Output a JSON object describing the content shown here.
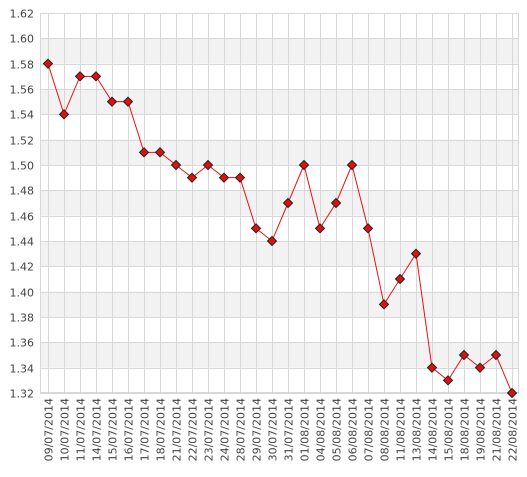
{
  "chart_data": {
    "type": "line",
    "title": "",
    "xlabel": "",
    "ylabel": "",
    "ylim": [
      1.32,
      1.62
    ],
    "yticks": [
      "1.32",
      "1.34",
      "1.36",
      "1.38",
      "1.40",
      "1.42",
      "1.44",
      "1.46",
      "1.48",
      "1.50",
      "1.52",
      "1.54",
      "1.56",
      "1.58",
      "1.60",
      "1.62"
    ],
    "categories": [
      "09/07/2014",
      "10/07/2014",
      "11/07/2014",
      "14/07/2014",
      "15/07/2014",
      "16/07/2014",
      "17/07/2014",
      "18/07/2014",
      "21/07/2014",
      "22/07/2014",
      "23/07/2014",
      "24/07/2014",
      "28/07/2014",
      "29/07/2014",
      "30/07/2014",
      "31/07/2014",
      "01/08/2014",
      "04/08/2014",
      "05/08/2014",
      "06/08/2014",
      "07/08/2014",
      "08/08/2014",
      "11/08/2014",
      "13/08/2014",
      "14/08/2014",
      "15/08/2014",
      "18/08/2014",
      "19/08/2014",
      "21/08/2014",
      "22/08/2014"
    ],
    "series": [
      {
        "values": [
          1.58,
          1.54,
          1.57,
          1.57,
          1.55,
          1.55,
          1.51,
          1.51,
          1.5,
          1.49,
          1.5,
          1.49,
          1.49,
          1.45,
          1.44,
          1.47,
          1.5,
          1.45,
          1.47,
          1.5,
          1.45,
          1.39,
          1.41,
          1.43,
          1.34,
          1.33,
          1.35,
          1.34,
          1.35,
          1.32
        ]
      }
    ],
    "grid": true,
    "legend": "none",
    "colors": {
      "line": "#ee1111",
      "marker_fill": "#dd1111",
      "marker_stroke": "#222222",
      "band": "#f2f2f2",
      "grid": "#d8d8d8"
    }
  }
}
